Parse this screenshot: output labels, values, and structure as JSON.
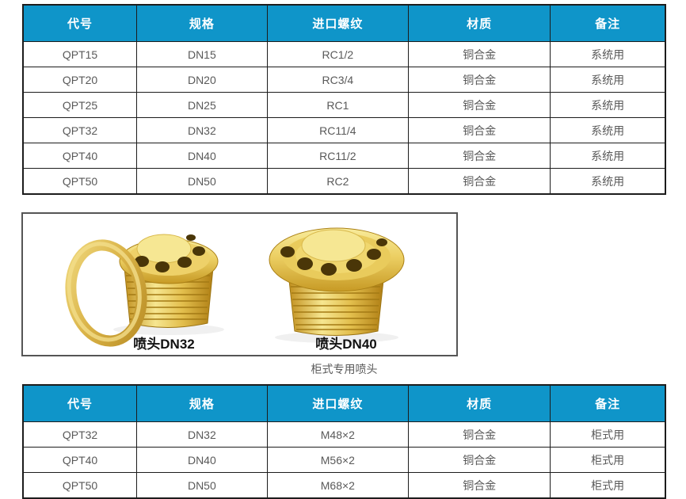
{
  "colors": {
    "header_bg": "#0f95c9",
    "header_text": "#ffffff",
    "cell_text": "#595959",
    "table_border": "#1c1c1c",
    "brass": "#e6c44f"
  },
  "system_table": {
    "headers": [
      "代号",
      "规格",
      "进口螺纹",
      "材质",
      "备注"
    ],
    "rows": [
      [
        "QPT15",
        "DN15",
        "RC1/2",
        "铜合金",
        "系统用"
      ],
      [
        "QPT20",
        "DN20",
        "RC3/4",
        "铜合金",
        "系统用"
      ],
      [
        "QPT25",
        "DN25",
        "RC1",
        "铜合金",
        "系统用"
      ],
      [
        "QPT32",
        "DN32",
        "RC11/4",
        "铜合金",
        "系统用"
      ],
      [
        "QPT40",
        "DN40",
        "RC11/2",
        "铜合金",
        "系统用"
      ],
      [
        "QPT50",
        "DN50",
        "RC2",
        "铜合金",
        "系统用"
      ]
    ]
  },
  "figure": {
    "label_left": "喷头DN32",
    "label_right": "喷头DN40",
    "caption": "柜式专用喷头"
  },
  "cabinet_table": {
    "headers": [
      "代号",
      "规格",
      "进口螺纹",
      "材质",
      "备注"
    ],
    "rows": [
      [
        "QPT32",
        "DN32",
        "M48×2",
        "铜合金",
        "柜式用"
      ],
      [
        "QPT40",
        "DN40",
        "M56×2",
        "铜合金",
        "柜式用"
      ],
      [
        "QPT50",
        "DN50",
        "M68×2",
        "铜合金",
        "柜式用"
      ]
    ]
  }
}
